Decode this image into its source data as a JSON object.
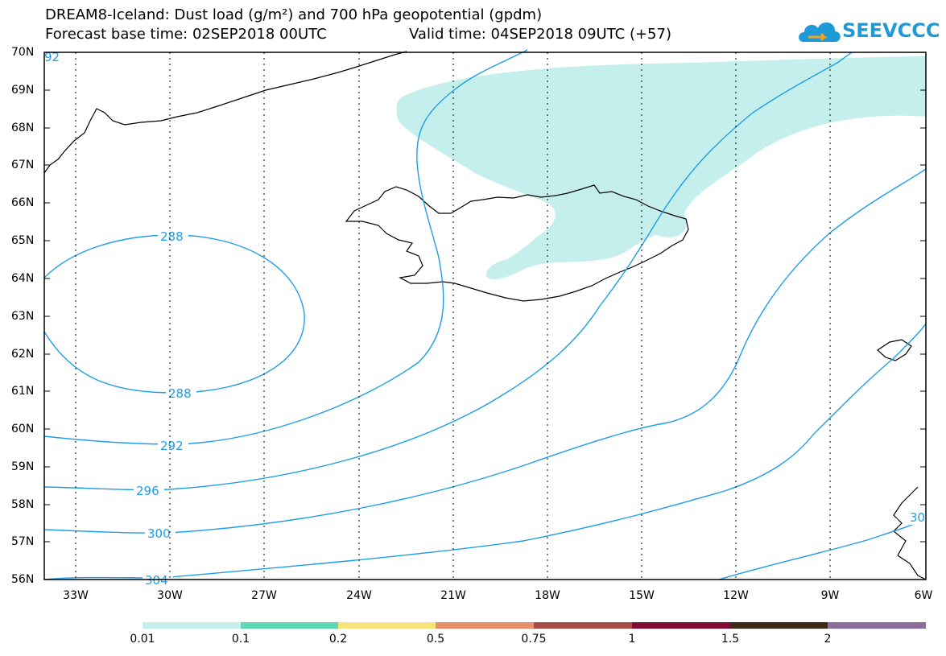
{
  "title": {
    "line1": "DREAM8-Iceland: Dust load (g/m²) and 700 hPa geopotential (gpdm)",
    "line2": "Forecast base time: 02SEP2018 00UTC",
    "valid": "Valid time: 04SEP2018 09UTC (+57)"
  },
  "logo": {
    "text": "SEEVCCC",
    "icon": "cloud-icon"
  },
  "map": {
    "lat_labels": [
      "70N",
      "69N",
      "68N",
      "67N",
      "66N",
      "65N",
      "64N",
      "63N",
      "62N",
      "61N",
      "60N",
      "59N",
      "58N",
      "57N",
      "56N"
    ],
    "lon_labels": [
      "33W",
      "30W",
      "27W",
      "24W",
      "21W",
      "18W",
      "15W",
      "12W",
      "9W",
      "6W"
    ],
    "contour_color": "#1e9ee8",
    "dust_fill_color": "#c5efec",
    "contour_labels": [
      "92",
      "288",
      "288",
      "292",
      "296",
      "300",
      "304",
      "30"
    ]
  },
  "colorbar": {
    "colors": [
      "#c5efec",
      "#5ed8b4",
      "#f6e37a",
      "#e8906c",
      "#a84c48",
      "#820d32",
      "#3e2a16",
      "#8e6c9c"
    ],
    "labels": [
      "0.01",
      "0.1",
      "0.2",
      "0.5",
      "0.75",
      "1",
      "1.5",
      "2"
    ]
  }
}
